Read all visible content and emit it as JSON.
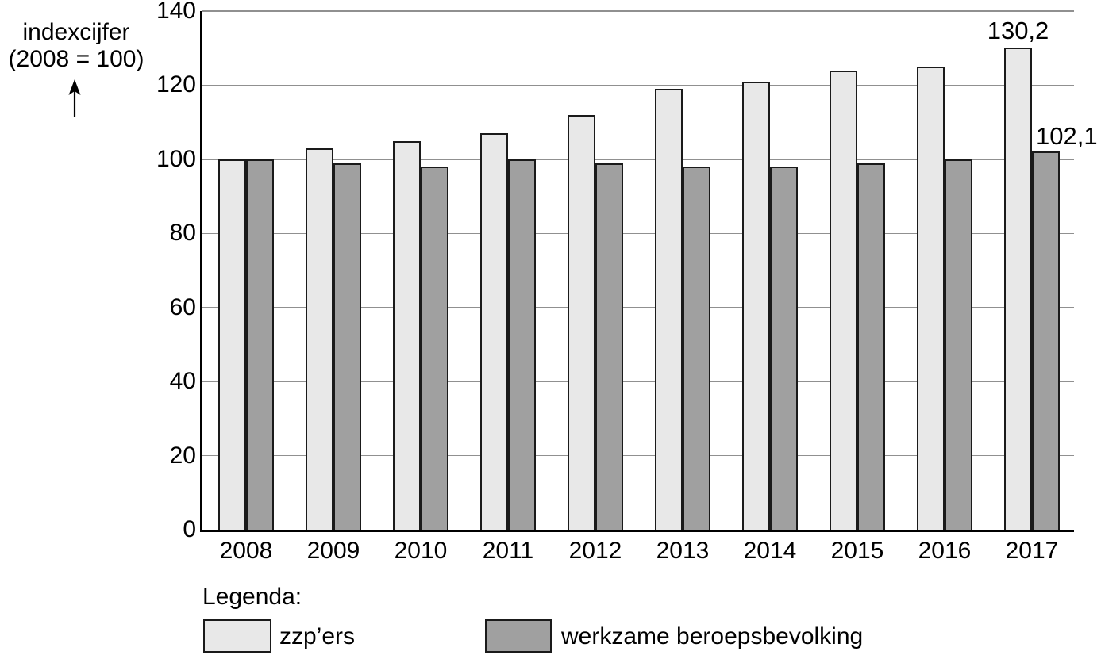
{
  "y_axis_title": {
    "line1": "indexcijfer",
    "line2": "(2008 = 100)"
  },
  "legend": {
    "heading": "Legenda:",
    "items": [
      {
        "label": "zzp’ers",
        "color": "#e8e8e8"
      },
      {
        "label": "werkzame beroepsbevolking",
        "color": "#a0a0a0"
      }
    ]
  },
  "colors": {
    "bar_border": "#1a1a1a",
    "gridline": "#909090",
    "axis": "#000000",
    "background": "#ffffff"
  },
  "chart_data": {
    "type": "bar",
    "title": "",
    "xlabel": "",
    "ylabel": "indexcijfer (2008 = 100)",
    "categories": [
      "2008",
      "2009",
      "2010",
      "2011",
      "2012",
      "2013",
      "2014",
      "2015",
      "2016",
      "2017"
    ],
    "series": [
      {
        "name": "zzp’ers",
        "color": "#e8e8e8",
        "values": [
          100,
          103,
          105,
          107,
          112,
          119,
          121,
          124,
          125,
          130.2
        ]
      },
      {
        "name": "werkzame beroepsbevolking",
        "color": "#a0a0a0",
        "values": [
          100,
          99,
          98,
          100,
          99,
          98,
          98,
          99,
          100,
          102.1
        ]
      }
    ],
    "ylim": [
      0,
      140
    ],
    "yticks": [
      0,
      20,
      40,
      60,
      80,
      100,
      120,
      140
    ],
    "grid": true,
    "legend_position": "bottom",
    "annotations": [
      {
        "text": "130,2",
        "series_index": 0,
        "category": "2017",
        "align": "center"
      },
      {
        "text": "102,1",
        "series_index": 1,
        "category": "2017",
        "align": "right-of-bar"
      }
    ]
  }
}
